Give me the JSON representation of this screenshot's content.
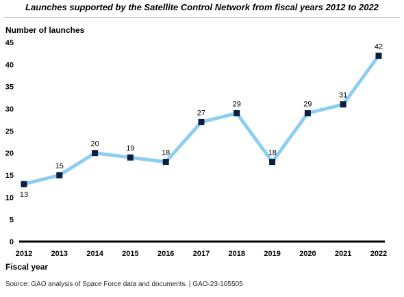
{
  "chart_data": {
    "type": "line",
    "title": "Launches supported by the Satellite Control Network from fiscal years 2012 to 2022",
    "xlabel": "Fiscal year",
    "ylabel": "Number of launches",
    "ylim": [
      0,
      45
    ],
    "yticks": [
      0,
      5,
      10,
      15,
      20,
      25,
      30,
      35,
      40,
      45
    ],
    "categories": [
      "2012",
      "2013",
      "2014",
      "2015",
      "2016",
      "2017",
      "2018",
      "2019",
      "2020",
      "2021",
      "2022"
    ],
    "values": [
      13,
      15,
      20,
      19,
      18,
      27,
      29,
      18,
      29,
      31,
      42
    ],
    "label_below": [
      true,
      false,
      false,
      false,
      false,
      false,
      false,
      false,
      false,
      false,
      false
    ],
    "grid": false,
    "line_color": "#8ecdf2",
    "marker_color": "#0d1f3c"
  },
  "source": "Source: GAO analysis of Space Force data and documents.  |  GAO-23-105505"
}
